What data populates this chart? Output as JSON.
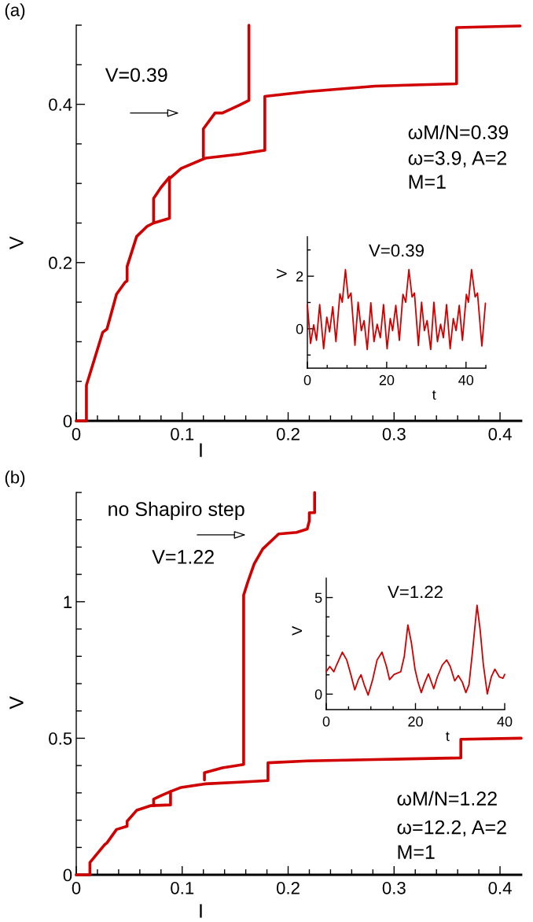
{
  "chart_data": [
    {
      "type": "line",
      "title": "(a)",
      "xlabel": "I",
      "ylabel": "V",
      "xlim": [
        0,
        0.42
      ],
      "ylim": [
        0,
        0.5
      ],
      "xticks": [
        0,
        0.1,
        0.2,
        0.3,
        0.4,
        {
          "value": 0.02,
          "label": null
        },
        {
          "value": 0.04,
          "label": null
        },
        {
          "value": 0.06,
          "label": null
        },
        {
          "value": 0.08,
          "label": null
        },
        {
          "value": 0.12,
          "label": null
        },
        {
          "value": 0.14,
          "label": null
        },
        {
          "value": 0.16,
          "label": null
        },
        {
          "value": 0.18,
          "label": null
        },
        {
          "value": 0.22,
          "label": null
        },
        {
          "value": 0.24,
          "label": null
        },
        {
          "value": 0.26,
          "label": null
        },
        {
          "value": 0.28,
          "label": null
        },
        {
          "value": 0.32,
          "label": null
        },
        {
          "value": 0.34,
          "label": null
        },
        {
          "value": 0.36,
          "label": null
        },
        {
          "value": 0.38,
          "label": null
        }
      ],
      "yticks": [
        0,
        0.2,
        0.4,
        {
          "value": 0.05,
          "label": null
        },
        {
          "value": 0.1,
          "label": null
        },
        {
          "value": 0.15,
          "label": null
        },
        {
          "value": 0.25,
          "label": null
        },
        {
          "value": 0.3,
          "label": null
        },
        {
          "value": 0.35,
          "label": null
        },
        {
          "value": 0.45,
          "label": null
        },
        {
          "value": 0.5,
          "label": null
        }
      ],
      "series": [
        {
          "color": "#d00000",
          "x": [
            0,
            0.0096,
            0.0096,
            0.025,
            0.029,
            0.038,
            0.046,
            0.048,
            0.048,
            0.057,
            0.067,
            0.073,
            0.088,
            0.088,
            0.099,
            0.122,
            0.154,
            0.178,
            0.178,
            0.218,
            0.282,
            0.359,
            0.359,
            0.419
          ],
          "values": [
            0,
            0,
            0.045,
            0.112,
            0.116,
            0.16,
            0.175,
            0.177,
            0.195,
            0.233,
            0.246,
            0.25,
            0.256,
            0.306,
            0.319,
            0.332,
            0.337,
            0.342,
            0.41,
            0.416,
            0.423,
            0.426,
            0.497,
            0.499
          ]
        },
        {
          "color": "#d00000",
          "x": [
            0.163,
            0.163,
            0.154,
            0.138,
            0.131,
            0.12,
            0.12,
            0.1,
            0.088,
            0.08,
            0.073,
            0.073
          ],
          "values": [
            0.5,
            0.405,
            0.399,
            0.389,
            0.389,
            0.369,
            0.333,
            null,
            0.308,
            0.295,
            0.281,
            0.25
          ]
        }
      ],
      "annotations": [
        "V=0.39",
        "ωM/N=0.39",
        "ω=3.9, A=2",
        "M=1"
      ]
    },
    {
      "type": "line",
      "title": "V=0.39",
      "xlabel": "t",
      "ylabel": "V",
      "xlim": [
        0,
        45
      ],
      "ylim": [
        -1.5,
        3.5
      ],
      "xticks": [
        0,
        20,
        40,
        {
          "value": 5,
          "label": null
        },
        {
          "value": 10,
          "label": null
        },
        {
          "value": 15,
          "label": null
        },
        {
          "value": 25,
          "label": null
        },
        {
          "value": 30,
          "label": null
        },
        {
          "value": 35,
          "label": null
        },
        {
          "value": 45,
          "label": null
        }
      ],
      "yticks": [
        0,
        2,
        {
          "value": -1,
          "label": null
        },
        {
          "value": 1,
          "label": null
        },
        {
          "value": 3,
          "label": null
        }
      ],
      "series": [
        {
          "color": "#d00000",
          "x": [
            0,
            0.8,
            1.6,
            2.3,
            3.1,
            4.1,
            4.9,
            5.6,
            6.4,
            7.2,
            8.2,
            8.8,
            9.6,
            10.3,
            11,
            12,
            12.8,
            13.6,
            14.3,
            15.1,
            16,
            16.8,
            17.6,
            18.4,
            19.2,
            20.1,
            20.9,
            21.5,
            22.3,
            23.2,
            24.1,
            24.8,
            25.6,
            26.4,
            27,
            28,
            28.8,
            29.5,
            30.2,
            31.1,
            31.9,
            32.8,
            33.6,
            34.3,
            35.1,
            36,
            36.8,
            37.5,
            38.3,
            39.1,
            40.1,
            40.6,
            41.4,
            42.3,
            42.9,
            44,
            44.9
          ],
          "values": [
            0.92,
            -0.56,
            0.15,
            -0.44,
            0.92,
            -0.76,
            0.44,
            -0.12,
            0.84,
            -0.49,
            1.33,
            1.01,
            2.25,
            1.16,
            1.36,
            -0.63,
            1.01,
            -0.07,
            0.31,
            -0.79,
            0.99,
            -0.49,
            0.17,
            -0.34,
            0.92,
            -0.76,
            0.39,
            -0.07,
            0.89,
            -0.44,
            1.31,
            1.01,
            2.25,
            1.21,
            1.36,
            -0.64,
            1.01,
            -0.07,
            0.31,
            -0.79,
            1.01,
            -0.49,
            0.17,
            -0.34,
            0.92,
            -0.76,
            0.39,
            -0.07,
            0.89,
            -0.44,
            1.31,
            1.01,
            2.25,
            1.21,
            1.36,
            -0.66,
            0.97
          ]
        }
      ]
    },
    {
      "type": "line",
      "title": "(b)",
      "xlabel": "I",
      "ylabel": "V",
      "xlim": [
        0,
        0.42
      ],
      "ylim": [
        0,
        1.4
      ],
      "xticks": [
        0,
        0.1,
        0.2,
        0.3,
        0.4,
        {
          "value": 0.02,
          "label": null
        },
        {
          "value": 0.04,
          "label": null
        },
        {
          "value": 0.06,
          "label": null
        },
        {
          "value": 0.08,
          "label": null
        },
        {
          "value": 0.12,
          "label": null
        },
        {
          "value": 0.14,
          "label": null
        },
        {
          "value": 0.16,
          "label": null
        },
        {
          "value": 0.18,
          "label": null
        },
        {
          "value": 0.22,
          "label": null
        },
        {
          "value": 0.24,
          "label": null
        },
        {
          "value": 0.26,
          "label": null
        },
        {
          "value": 0.28,
          "label": null
        },
        {
          "value": 0.32,
          "label": null
        },
        {
          "value": 0.34,
          "label": null
        },
        {
          "value": 0.36,
          "label": null
        },
        {
          "value": 0.38,
          "label": null
        }
      ],
      "yticks": [
        0,
        0.5,
        1,
        {
          "value": 0.1,
          "label": null
        },
        {
          "value": 0.2,
          "label": null
        },
        {
          "value": 0.3,
          "label": null
        },
        {
          "value": 0.4,
          "label": null
        },
        {
          "value": 0.6,
          "label": null
        },
        {
          "value": 0.7,
          "label": null
        },
        {
          "value": 0.8,
          "label": null
        },
        {
          "value": 0.9,
          "label": null
        },
        {
          "value": 1.1,
          "label": null
        },
        {
          "value": 1.2,
          "label": null
        },
        {
          "value": 1.3,
          "label": null
        },
        {
          "value": 1.4,
          "label": null
        }
      ],
      "series": [
        {
          "color": "#d00000",
          "x": [
            0,
            0.0129,
            0.0129,
            0.027,
            0.029,
            0.038,
            0.048,
            0.048,
            0.057,
            0.07,
            0.089,
            0.089,
            0.099,
            0.122,
            0.154,
            0.181,
            0.181,
            0.218,
            0.282,
            0.363,
            0.363,
            0.42
          ],
          "values": [
            0,
            0,
            0.045,
            0.111,
            0.117,
            0.166,
            0.178,
            0.196,
            0.236,
            0.253,
            0.256,
            0.305,
            0.32,
            0.333,
            0.339,
            0.345,
            0.41,
            0.417,
            0.422,
            0.428,
            0.496,
            0.5
          ]
        },
        {
          "color": "#d00000",
          "x": [
            0.225,
            0.225,
            0.22,
            0.22,
            0.218,
            0.208,
            0.191,
            0.176,
            0.168,
            0.162,
            0.158,
            0.158,
            0.158,
            0.138,
            0.121,
            0.121,
            0.1,
            0.089,
            0.08,
            0.073,
            0.073
          ],
          "values": [
            1.4,
            1.326,
            1.326,
            1.296,
            1.266,
            1.254,
            1.248,
            1.193,
            1.139,
            1.073,
            1.024,
            0.544,
            0.404,
            0.392,
            0.374,
            0.347,
            null,
            0.305,
            0.29,
            0.277,
            0.253
          ]
        }
      ],
      "annotations": [
        "no Shapiro step",
        "V=1.22",
        "ωM/N=1.22",
        "ω=12.2, A=2",
        "M=1"
      ]
    },
    {
      "type": "line",
      "title": "V=1.22",
      "xlabel": "t",
      "ylabel": "V",
      "xlim": [
        0,
        40
      ],
      "ylim": [
        -0.8,
        6
      ],
      "xticks": [
        0,
        20,
        40,
        {
          "value": 5,
          "label": null
        },
        {
          "value": 10,
          "label": null
        },
        {
          "value": 15,
          "label": null
        },
        {
          "value": 25,
          "label": null
        },
        {
          "value": 30,
          "label": null
        },
        {
          "value": 35,
          "label": null
        }
      ],
      "yticks": [
        0,
        5,
        {
          "value": 1,
          "label": null
        },
        {
          "value": 2,
          "label": null
        },
        {
          "value": 3,
          "label": null
        },
        {
          "value": 4,
          "label": null
        }
      ],
      "series": [
        {
          "color": "#d00000",
          "x": [
            0,
            0.8,
            1.7,
            2.3,
            3.6,
            4.6,
            5.5,
            6.4,
            7.2,
            7.8,
            8.5,
            9.4,
            10.4,
            11.4,
            12.5,
            13.5,
            14.2,
            15.2,
            16.7,
            17.5,
            18.3,
            19.1,
            19.9,
            20.5,
            21.3,
            22,
            22.9,
            24.1,
            24.9,
            26,
            27,
            27.8,
            28.8,
            29.6,
            30.5,
            31.3,
            32,
            32.8,
            33.8,
            34.5,
            35.2,
            36.1,
            37,
            37.8,
            38.8,
            39.6,
            40
          ],
          "values": [
            1.16,
            1.43,
            1.16,
            1.5,
            2.17,
            1.77,
            1.02,
            0.22,
            0.75,
            1.0,
            0.49,
            -0.05,
            0.75,
            1.77,
            2.17,
            1.43,
            0.75,
            1.02,
            1.16,
            1.97,
            3.58,
            2.64,
            1.29,
            0.69,
            0.08,
            0.55,
            1.05,
            0.28,
            0.89,
            1.5,
            1.77,
            1.43,
            0.69,
            0.96,
            0.62,
            0.08,
            0.49,
            2.24,
            4.6,
            3.32,
            1.56,
            0.01,
            0.89,
            1.29,
            0.89,
            0.82,
            1.02
          ]
        }
      ]
    }
  ]
}
